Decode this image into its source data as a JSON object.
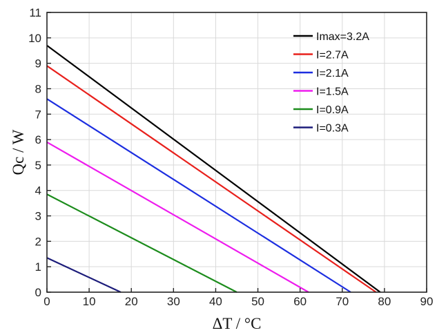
{
  "chart_data": {
    "type": "line",
    "title": "",
    "xlabel": "ΔT / °C",
    "ylabel": "Qc / W",
    "xlim": [
      0,
      90
    ],
    "ylim": [
      0,
      11
    ],
    "xticks": [
      "0",
      "10",
      "20",
      "30",
      "40",
      "50",
      "60",
      "70",
      "80",
      "90"
    ],
    "yticks": [
      "0",
      "1",
      "2",
      "3",
      "4",
      "5",
      "6",
      "7",
      "8",
      "9",
      "10",
      "11"
    ],
    "grid": true,
    "legend_position": "top-right",
    "series": [
      {
        "name": "Imax=3.2A",
        "color": "#000000",
        "x": [
          0,
          79
        ],
        "y": [
          9.7,
          0
        ]
      },
      {
        "name": "I=2.7A",
        "color": "#e8201c",
        "x": [
          0,
          78
        ],
        "y": [
          8.9,
          0
        ]
      },
      {
        "name": "I=2.1A",
        "color": "#1c2ee0",
        "x": [
          0,
          72
        ],
        "y": [
          7.6,
          0
        ]
      },
      {
        "name": "I=1.5A",
        "color": "#ee1cee",
        "x": [
          0,
          62
        ],
        "y": [
          5.9,
          0
        ]
      },
      {
        "name": "I=0.9A",
        "color": "#1c8c1c",
        "x": [
          0,
          45
        ],
        "y": [
          3.85,
          0
        ]
      },
      {
        "name": "I=0.3A",
        "color": "#1c1c7a",
        "x": [
          0,
          17.5
        ],
        "y": [
          1.35,
          0
        ]
      }
    ]
  }
}
